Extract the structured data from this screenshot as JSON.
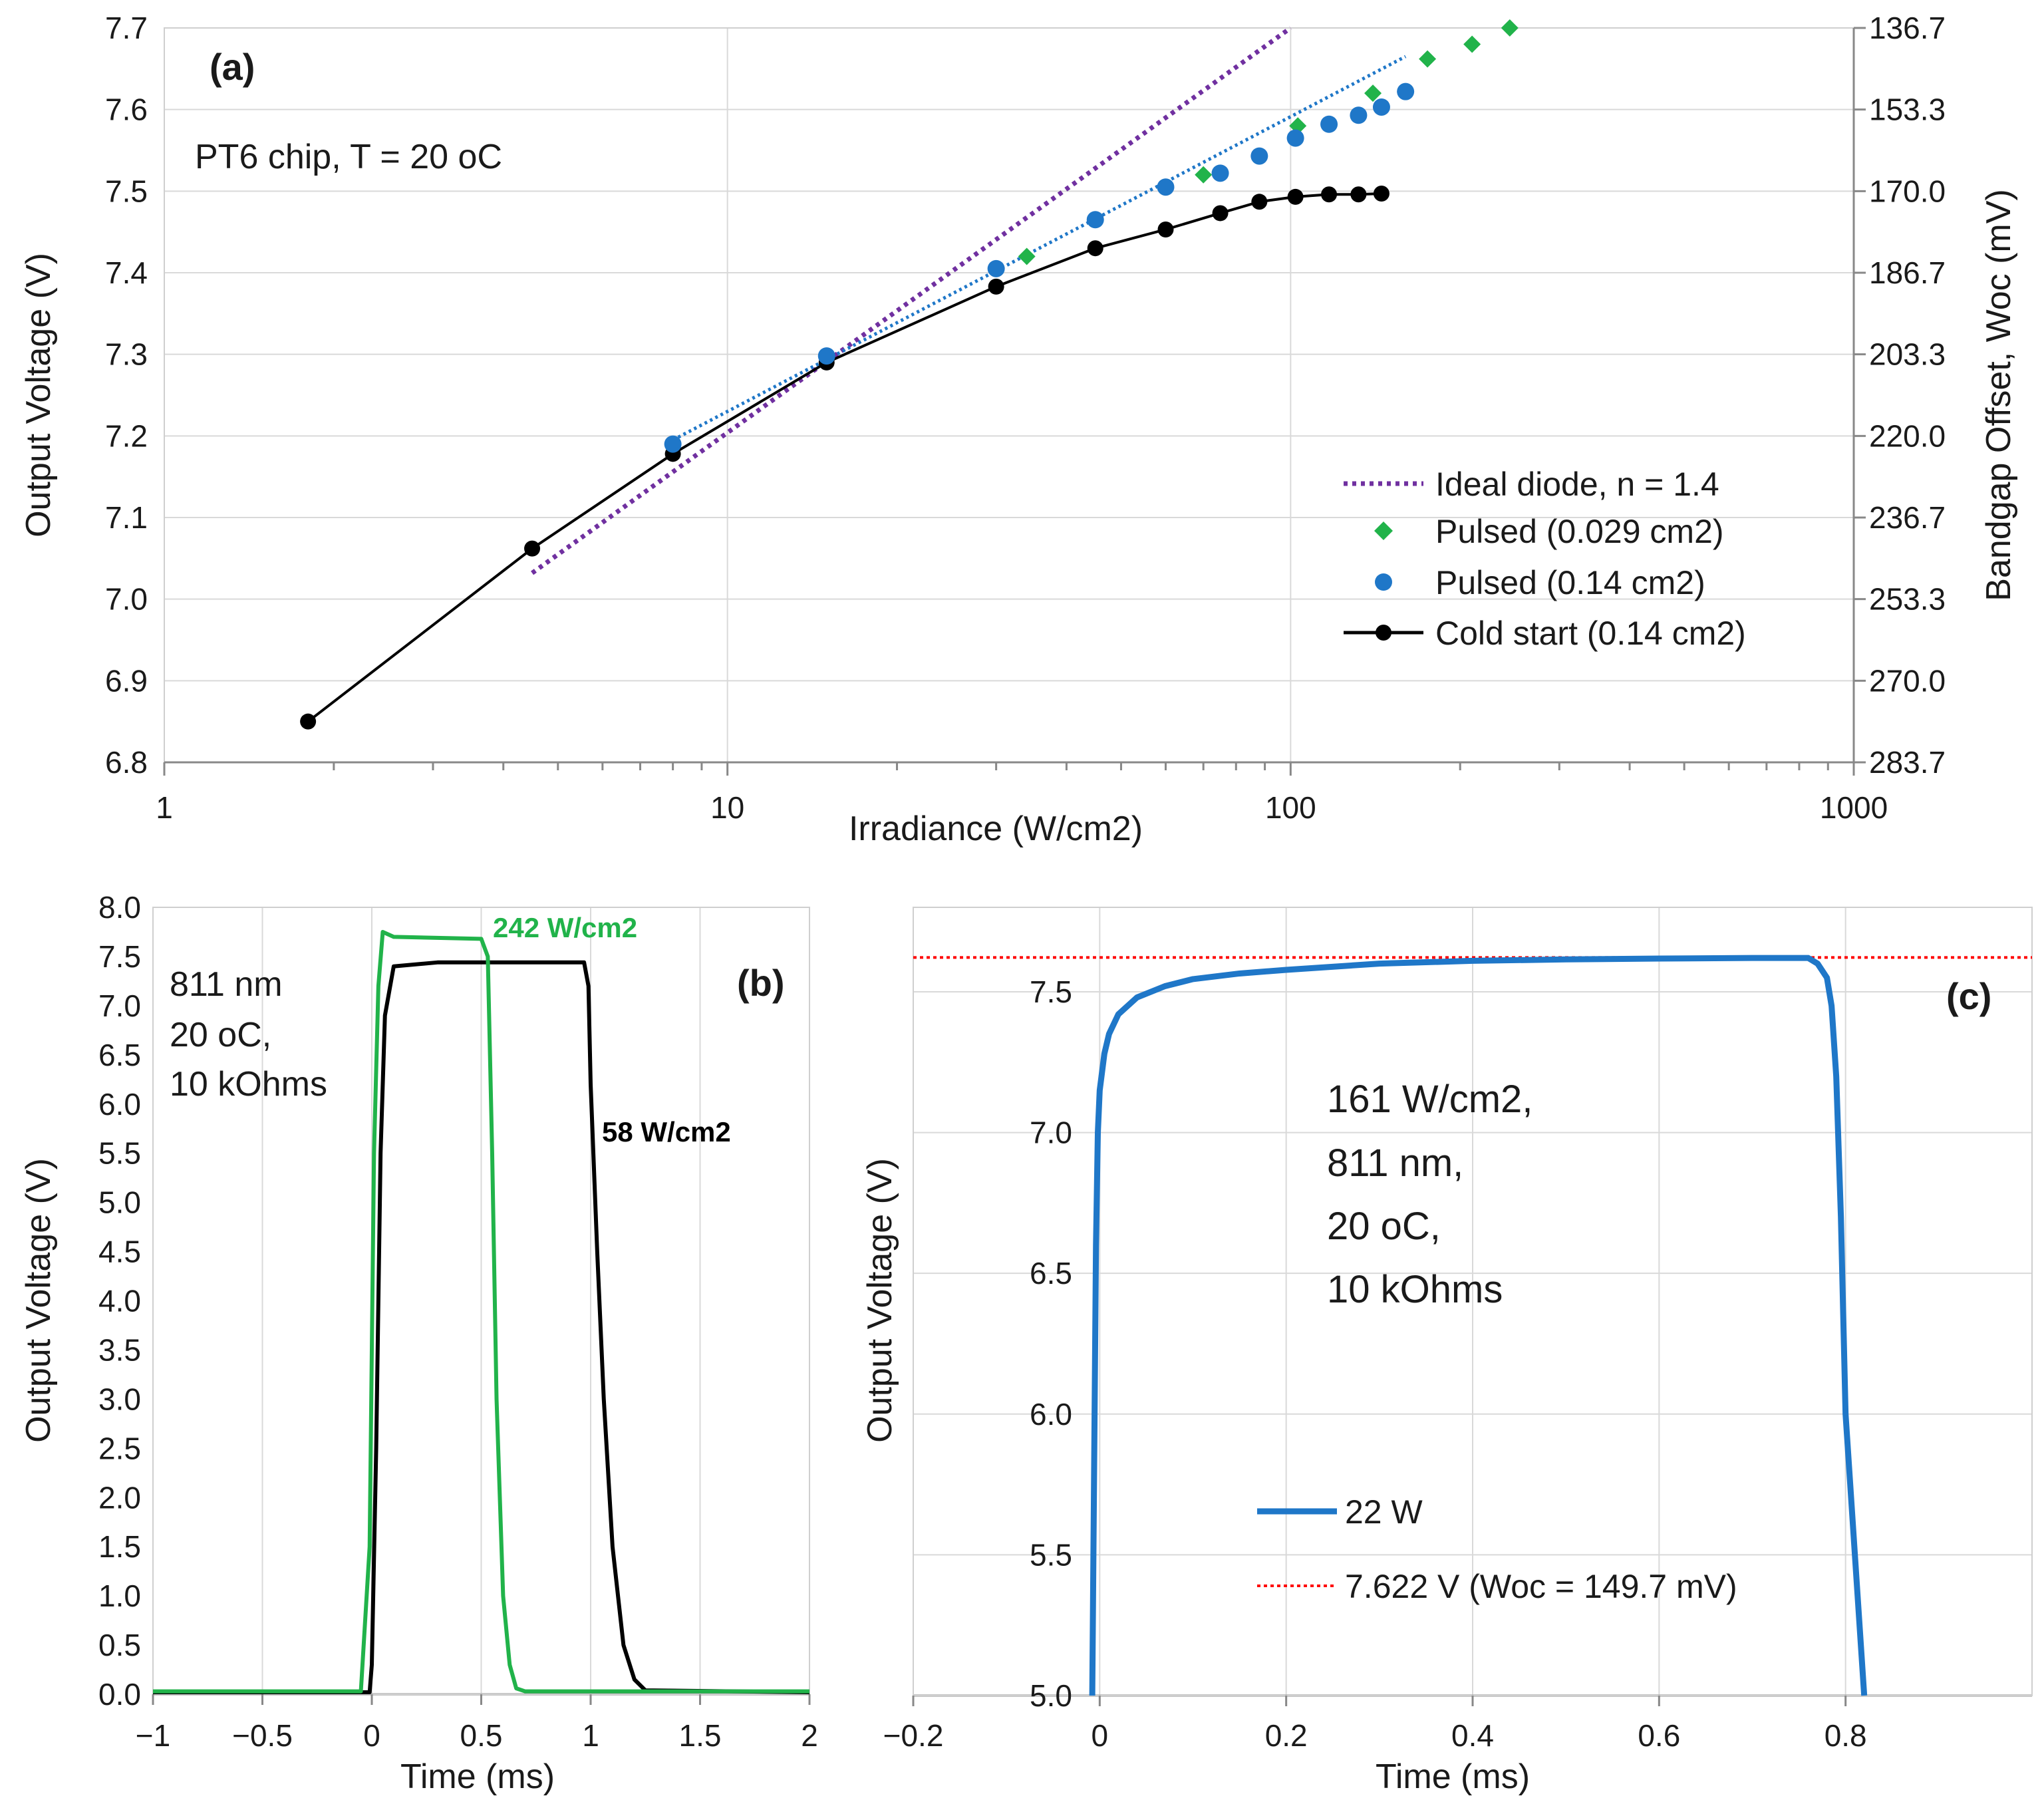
{
  "chart_data": [
    {
      "id": "a",
      "type": "scatter",
      "panel_label": "(a)",
      "annotation": "PT6 chip, T = 20 oC",
      "xlabel": "Irradiance (W/cm2)",
      "ylabel": "Output Voltage (V)",
      "y2label": "Bandgap Offset, Woc (mV)",
      "xscale": "log",
      "xlim": [
        1,
        1000
      ],
      "ylim": [
        6.8,
        7.7
      ],
      "xticks": [
        1,
        10,
        100,
        1000
      ],
      "xtick_labels": [
        "1",
        "10",
        "100",
        "1000"
      ],
      "yticks": [
        6.8,
        6.9,
        7.0,
        7.1,
        7.2,
        7.3,
        7.4,
        7.5,
        7.6,
        7.7
      ],
      "ytick_labels": [
        "6.8",
        "6.9",
        "7.0",
        "7.1",
        "7.2",
        "7.3",
        "7.4",
        "7.5",
        "7.6",
        "7.7"
      ],
      "y2tick_labels": [
        "283.7",
        "270.0",
        "253.3",
        "236.7",
        "220.0",
        "203.3",
        "186.7",
        "170.0",
        "153.3",
        "136.7"
      ],
      "grid": true,
      "legend_position": "lower-right",
      "series": [
        {
          "name": "Ideal diode, n = 1.4",
          "style": "dotted-line",
          "color": "#7030a0",
          "x": [
            4.5,
            100
          ],
          "y": [
            7.032,
            7.7
          ]
        },
        {
          "name": "Pulsed (0.029 cm2)",
          "style": "diamond",
          "color": "#21b34a",
          "x": [
            34,
            70,
            103,
            140,
            175,
            210,
            245
          ],
          "y": [
            7.42,
            7.52,
            7.58,
            7.62,
            7.662,
            7.68,
            7.7
          ]
        },
        {
          "name": "Pulsed (0.14 cm2)",
          "style": "circle",
          "color": "#1f77c8",
          "x": [
            8,
            15,
            30,
            45,
            60,
            75,
            88,
            102,
            117,
            132,
            145,
            160
          ],
          "y": [
            7.19,
            7.298,
            7.405,
            7.465,
            7.505,
            7.522,
            7.543,
            7.565,
            7.582,
            7.593,
            7.603,
            7.622
          ]
        },
        {
          "name": "Pulsed (0.14 cm2) trend",
          "style": "dotted-line",
          "color": "#1f77c8",
          "x": [
            8,
            160
          ],
          "y": [
            7.195,
            7.665
          ]
        },
        {
          "name": "Cold start (0.14 cm2)",
          "style": "line-circle",
          "color": "#000000",
          "x": [
            1.8,
            4.5,
            8,
            15,
            30,
            45,
            60,
            75,
            88,
            102,
            117,
            132,
            145
          ],
          "y": [
            6.85,
            7.062,
            7.178,
            7.29,
            7.383,
            7.43,
            7.453,
            7.473,
            7.487,
            7.493,
            7.496,
            7.496,
            7.497
          ]
        }
      ],
      "legend": [
        {
          "label": "Ideal diode, n = 1.4",
          "series": 0
        },
        {
          "label": "Pulsed (0.029 cm2)",
          "series": 1
        },
        {
          "label": "Pulsed (0.14 cm2)",
          "series": 2
        },
        {
          "label": "Cold start (0.14 cm2)",
          "series": 4
        }
      ]
    },
    {
      "id": "b",
      "type": "line",
      "panel_label": "(b)",
      "annotation_lines": [
        "811 nm",
        "20 oC,",
        "10 kOhms"
      ],
      "xlabel": "Time (ms)",
      "ylabel": "Output Voltage (V)",
      "xlim": [
        -1,
        2
      ],
      "ylim": [
        0,
        8
      ],
      "xticks": [
        -1,
        -0.5,
        0,
        0.5,
        1,
        1.5,
        2
      ],
      "xtick_labels": [
        "−1",
        "−0.5",
        "0",
        "0.5",
        "1",
        "1.5",
        "2"
      ],
      "yticks": [
        0,
        0.5,
        1,
        1.5,
        2,
        2.5,
        3,
        3.5,
        4,
        4.5,
        5,
        5.5,
        6,
        6.5,
        7,
        7.5,
        8
      ],
      "ytick_labels": [
        "0.0",
        "0.5",
        "1.0",
        "1.5",
        "2.0",
        "2.5",
        "3.0",
        "3.5",
        "4.0",
        "4.5",
        "5.0",
        "5.5",
        "6.0",
        "6.5",
        "7.0",
        "7.5",
        "8.0"
      ],
      "grid": true,
      "series": [
        {
          "name": "242 W/cm2",
          "color": "#21b34a",
          "x": [
            -1,
            -0.05,
            -0.01,
            0.01,
            0.03,
            0.05,
            0.1,
            0.5,
            0.53,
            0.55,
            0.57,
            0.6,
            0.63,
            0.66,
            0.7,
            2
          ],
          "y": [
            0.03,
            0.03,
            1.5,
            5.5,
            7.2,
            7.75,
            7.7,
            7.68,
            7.5,
            5.5,
            3.0,
            1.0,
            0.3,
            0.06,
            0.03,
            0.03
          ]
        },
        {
          "name": "58 W/cm2",
          "color": "#000000",
          "x": [
            -1,
            -0.01,
            0.0,
            0.02,
            0.04,
            0.06,
            0.1,
            0.3,
            0.97,
            0.99,
            1.0,
            1.03,
            1.06,
            1.1,
            1.15,
            1.2,
            1.25,
            2
          ],
          "y": [
            0.02,
            0.02,
            0.3,
            2.5,
            5.5,
            6.9,
            7.4,
            7.44,
            7.44,
            7.2,
            6.2,
            4.5,
            3.0,
            1.5,
            0.5,
            0.15,
            0.04,
            0.02
          ]
        }
      ],
      "labels": [
        {
          "text": "242 W/cm2",
          "series": 0
        },
        {
          "text": "58 W/cm2",
          "series": 1
        }
      ]
    },
    {
      "id": "c",
      "type": "line",
      "panel_label": "(c)",
      "annotation_lines": [
        "161 W/cm2,",
        "811 nm,",
        "20 oC,",
        "10 kOhms"
      ],
      "xlabel": "Time (ms)",
      "ylabel": "Output Voltage (V)",
      "xlim": [
        -0.2,
        1.0
      ],
      "ylim": [
        5.0,
        7.8
      ],
      "xticks": [
        -0.2,
        0,
        0.2,
        0.4,
        0.6,
        0.8
      ],
      "xtick_labels": [
        "−0.2",
        "0",
        "0.2",
        "0.4",
        "0.6",
        "0.8"
      ],
      "yticks": [
        5.0,
        5.5,
        6.0,
        6.5,
        7.0,
        7.5
      ],
      "ytick_labels": [
        "5.0",
        "5.5",
        "6.0",
        "6.5",
        "7.0",
        "7.5"
      ],
      "grid": true,
      "legend_position": "lower-center",
      "series": [
        {
          "name": "22 W",
          "color": "#1f77c8",
          "x": [
            -0.008,
            -0.006,
            -0.004,
            -0.002,
            0.0,
            0.005,
            0.01,
            0.02,
            0.04,
            0.07,
            0.1,
            0.15,
            0.2,
            0.3,
            0.4,
            0.5,
            0.6,
            0.7,
            0.76,
            0.77,
            0.78,
            0.785,
            0.79,
            0.795,
            0.8,
            0.81,
            0.82
          ],
          "y": [
            5.0,
            5.8,
            6.6,
            7.0,
            7.15,
            7.28,
            7.35,
            7.42,
            7.48,
            7.52,
            7.545,
            7.565,
            7.578,
            7.6,
            7.61,
            7.615,
            7.618,
            7.62,
            7.62,
            7.6,
            7.55,
            7.45,
            7.2,
            6.7,
            6.0,
            5.5,
            5.0
          ]
        },
        {
          "name": "7.622 V (Woc = 149.7 mV)",
          "color": "#ff0000",
          "style": "dotted",
          "x": [
            -0.2,
            1.0
          ],
          "y": [
            7.622,
            7.622
          ]
        }
      ],
      "legend": [
        {
          "label": "22 W",
          "series": 0
        },
        {
          "label": "7.622 V (Woc = 149.7 mV)",
          "series": 1
        }
      ]
    }
  ]
}
